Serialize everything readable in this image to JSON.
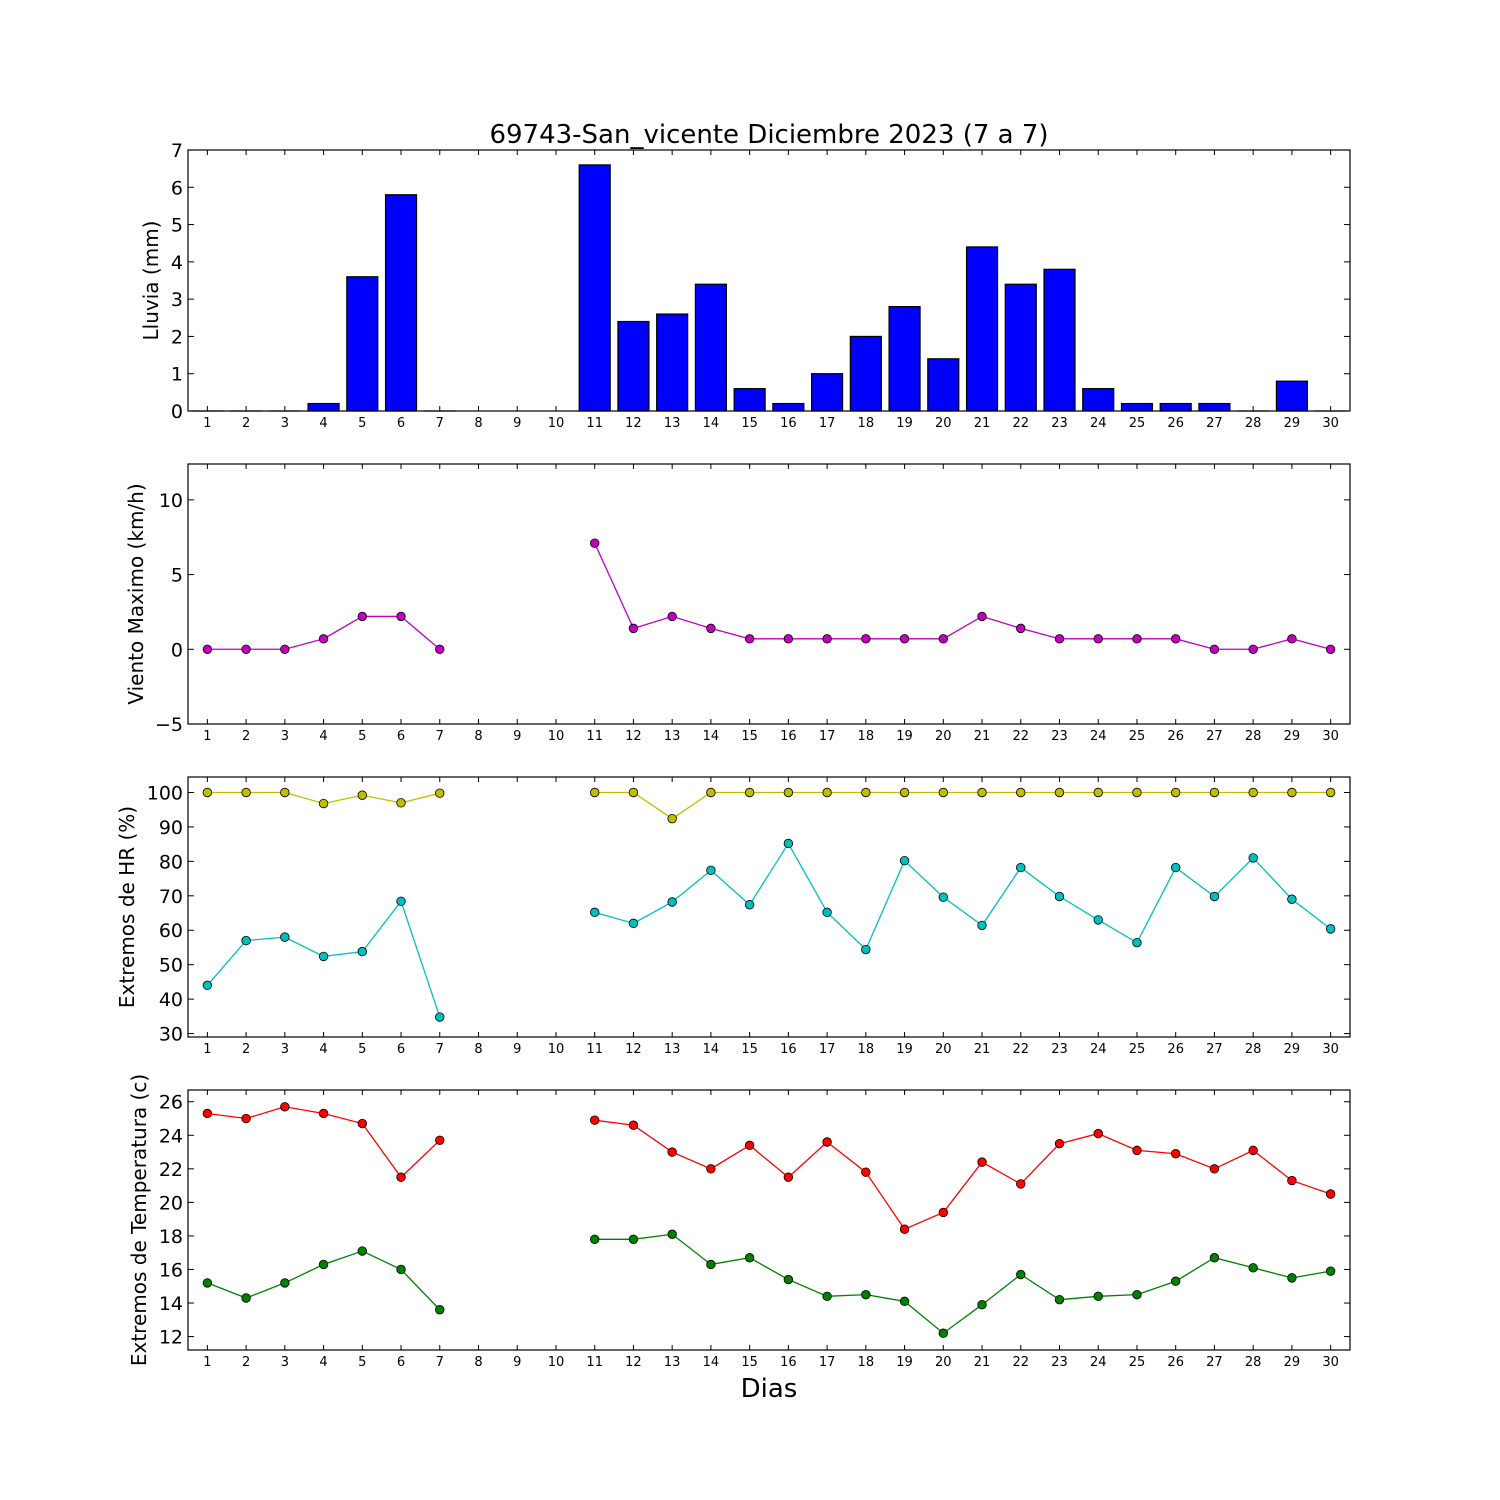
{
  "title": "69743-San_vicente Diciembre 2023  (7 a 7)",
  "xlabel": "Dias",
  "colors": {
    "rain": "#0000ff",
    "wind": "#bf00bf",
    "hr_max": "#bfbf00",
    "hr_min": "#00bfbf",
    "t_max": "#ff0000",
    "t_min": "#008000"
  },
  "chart_data": [
    {
      "type": "bar",
      "ylabel": "Lluvia (mm)",
      "x": [
        1,
        2,
        3,
        4,
        5,
        6,
        7,
        8,
        9,
        10,
        11,
        12,
        13,
        14,
        15,
        16,
        17,
        18,
        19,
        20,
        21,
        22,
        23,
        24,
        25,
        26,
        27,
        28,
        29,
        30
      ],
      "values": [
        0,
        0,
        0,
        0.2,
        3.6,
        5.8,
        0,
        null,
        null,
        null,
        6.6,
        2.4,
        2.6,
        3.4,
        0.6,
        0.2,
        1.0,
        2.0,
        2.8,
        1.4,
        4.4,
        3.4,
        3.8,
        0.6,
        0.2,
        0.2,
        0.2,
        0,
        0.8,
        0
      ],
      "ylim": [
        0,
        7
      ],
      "yticks": [
        0,
        1,
        2,
        3,
        4,
        5,
        6,
        7
      ],
      "xlim": [
        0.5,
        30.5
      ]
    },
    {
      "type": "line",
      "ylabel": "Viento Maximo (km/h)",
      "x": [
        1,
        2,
        3,
        4,
        5,
        6,
        7,
        8,
        9,
        10,
        11,
        12,
        13,
        14,
        15,
        16,
        17,
        18,
        19,
        20,
        21,
        22,
        23,
        24,
        25,
        26,
        27,
        28,
        29,
        30
      ],
      "series": [
        {
          "values": [
            0,
            0,
            0,
            0.7,
            2.2,
            2.2,
            0,
            null,
            null,
            null,
            7.1,
            1.4,
            2.2,
            1.4,
            0.7,
            0.7,
            0.7,
            0.7,
            0.7,
            0.7,
            2.2,
            1.4,
            0.7,
            0.7,
            0.7,
            0.7,
            0,
            0,
            0.7,
            0
          ]
        }
      ],
      "ylim": [
        -5,
        12.4
      ],
      "yticks": [
        -5,
        0,
        5,
        10
      ],
      "xlim": [
        0.5,
        30.5
      ]
    },
    {
      "type": "line",
      "ylabel": "Extremos de HR (%)",
      "x": [
        1,
        2,
        3,
        4,
        5,
        6,
        7,
        8,
        9,
        10,
        11,
        12,
        13,
        14,
        15,
        16,
        17,
        18,
        19,
        20,
        21,
        22,
        23,
        24,
        25,
        26,
        27,
        28,
        29,
        30
      ],
      "series": [
        {
          "values": [
            100,
            100,
            100,
            96.8,
            99.2,
            97,
            99.8,
            null,
            null,
            null,
            100,
            100,
            92.4,
            100,
            100,
            100,
            100,
            100,
            100,
            100,
            100,
            100,
            100,
            100,
            100,
            100,
            100,
            100,
            100,
            100
          ]
        },
        {
          "values": [
            44,
            57,
            58,
            52.4,
            53.8,
            68.4,
            34.8,
            null,
            null,
            null,
            65.2,
            62,
            68.2,
            77.4,
            67.4,
            85.2,
            65.2,
            54.4,
            80.2,
            69.6,
            61.4,
            78.2,
            69.8,
            63,
            56.4,
            78.2,
            69.8,
            81,
            69,
            60.4
          ]
        }
      ],
      "ylim": [
        29,
        104.5
      ],
      "yticks": [
        30,
        40,
        50,
        60,
        70,
        80,
        90,
        100
      ],
      "xlim": [
        0.5,
        30.5
      ]
    },
    {
      "type": "line",
      "ylabel": "Extremos de Temperatura (c)",
      "x": [
        1,
        2,
        3,
        4,
        5,
        6,
        7,
        8,
        9,
        10,
        11,
        12,
        13,
        14,
        15,
        16,
        17,
        18,
        19,
        20,
        21,
        22,
        23,
        24,
        25,
        26,
        27,
        28,
        29,
        30
      ],
      "series": [
        {
          "values": [
            25.3,
            25.0,
            25.7,
            25.3,
            24.7,
            21.5,
            23.7,
            null,
            null,
            null,
            24.9,
            24.6,
            23.0,
            22.0,
            23.4,
            21.5,
            23.6,
            21.8,
            18.4,
            19.4,
            22.4,
            21.1,
            23.5,
            24.1,
            23.1,
            22.9,
            22.0,
            23.1,
            21.3,
            20.5
          ]
        },
        {
          "values": [
            15.2,
            14.3,
            15.2,
            16.3,
            17.1,
            16.0,
            13.6,
            null,
            null,
            null,
            17.8,
            17.8,
            18.1,
            16.3,
            16.7,
            15.4,
            14.4,
            14.5,
            14.1,
            12.2,
            13.9,
            15.7,
            14.2,
            14.4,
            14.5,
            15.3,
            16.7,
            16.1,
            15.5,
            15.9
          ]
        }
      ],
      "ylim": [
        11.2,
        26.7
      ],
      "yticks": [
        12,
        14,
        16,
        18,
        20,
        22,
        24,
        26
      ],
      "xlim": [
        0.5,
        30.5
      ]
    }
  ]
}
